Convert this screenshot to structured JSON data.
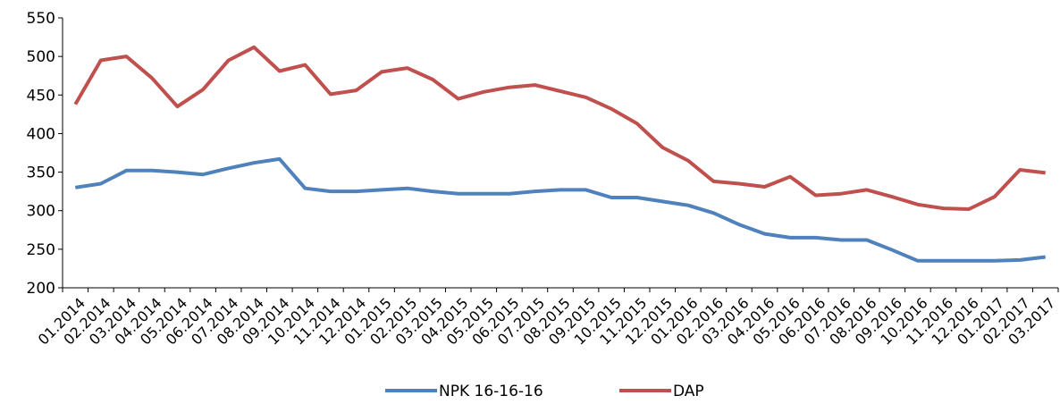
{
  "chart_data": {
    "type": "line",
    "categories": [
      "01.2014",
      "02.2014",
      "03.2014",
      "04.2014",
      "05.2014",
      "06.2014",
      "07.2014",
      "08.2014",
      "09.2014",
      "10.2014",
      "11.2014",
      "12.2014",
      "01.2015",
      "02.2015",
      "03.2015",
      "04.2015",
      "05.2015",
      "06.2015",
      "07.2015",
      "08.2015",
      "09.2015",
      "10.2015",
      "11.2015",
      "12.2015",
      "01.2016",
      "02.2016",
      "03.2016",
      "04.2016",
      "05.2016",
      "06.2016",
      "07.2016",
      "08.2016",
      "09.2016",
      "10.2016",
      "11.2016",
      "12.2016",
      "01.2017",
      "02.2017",
      "03.2017"
    ],
    "series": [
      {
        "name": "NPK 16-16-16",
        "color": "#4f81bd",
        "values": [
          330,
          335,
          352,
          352,
          350,
          347,
          355,
          362,
          367,
          329,
          325,
          325,
          327,
          329,
          325,
          322,
          322,
          322,
          325,
          327,
          327,
          317,
          317,
          312,
          307,
          297,
          282,
          270,
          265,
          265,
          262,
          262,
          249,
          235,
          235,
          235,
          235,
          236,
          240
        ]
      },
      {
        "name": "DAP",
        "color": "#c0504d",
        "values": [
          438,
          495,
          500,
          472,
          435,
          457,
          495,
          512,
          481,
          489,
          451,
          456,
          480,
          485,
          470,
          445,
          454,
          460,
          463,
          455,
          447,
          432,
          413,
          382,
          365,
          338,
          335,
          331,
          344,
          320,
          322,
          327,
          318,
          308,
          303,
          302,
          318,
          353,
          349
        ]
      }
    ],
    "ylim": [
      200,
      550
    ],
    "yticks": [
      200,
      250,
      300,
      350,
      400,
      450,
      500,
      550
    ],
    "legend": "bottom"
  }
}
